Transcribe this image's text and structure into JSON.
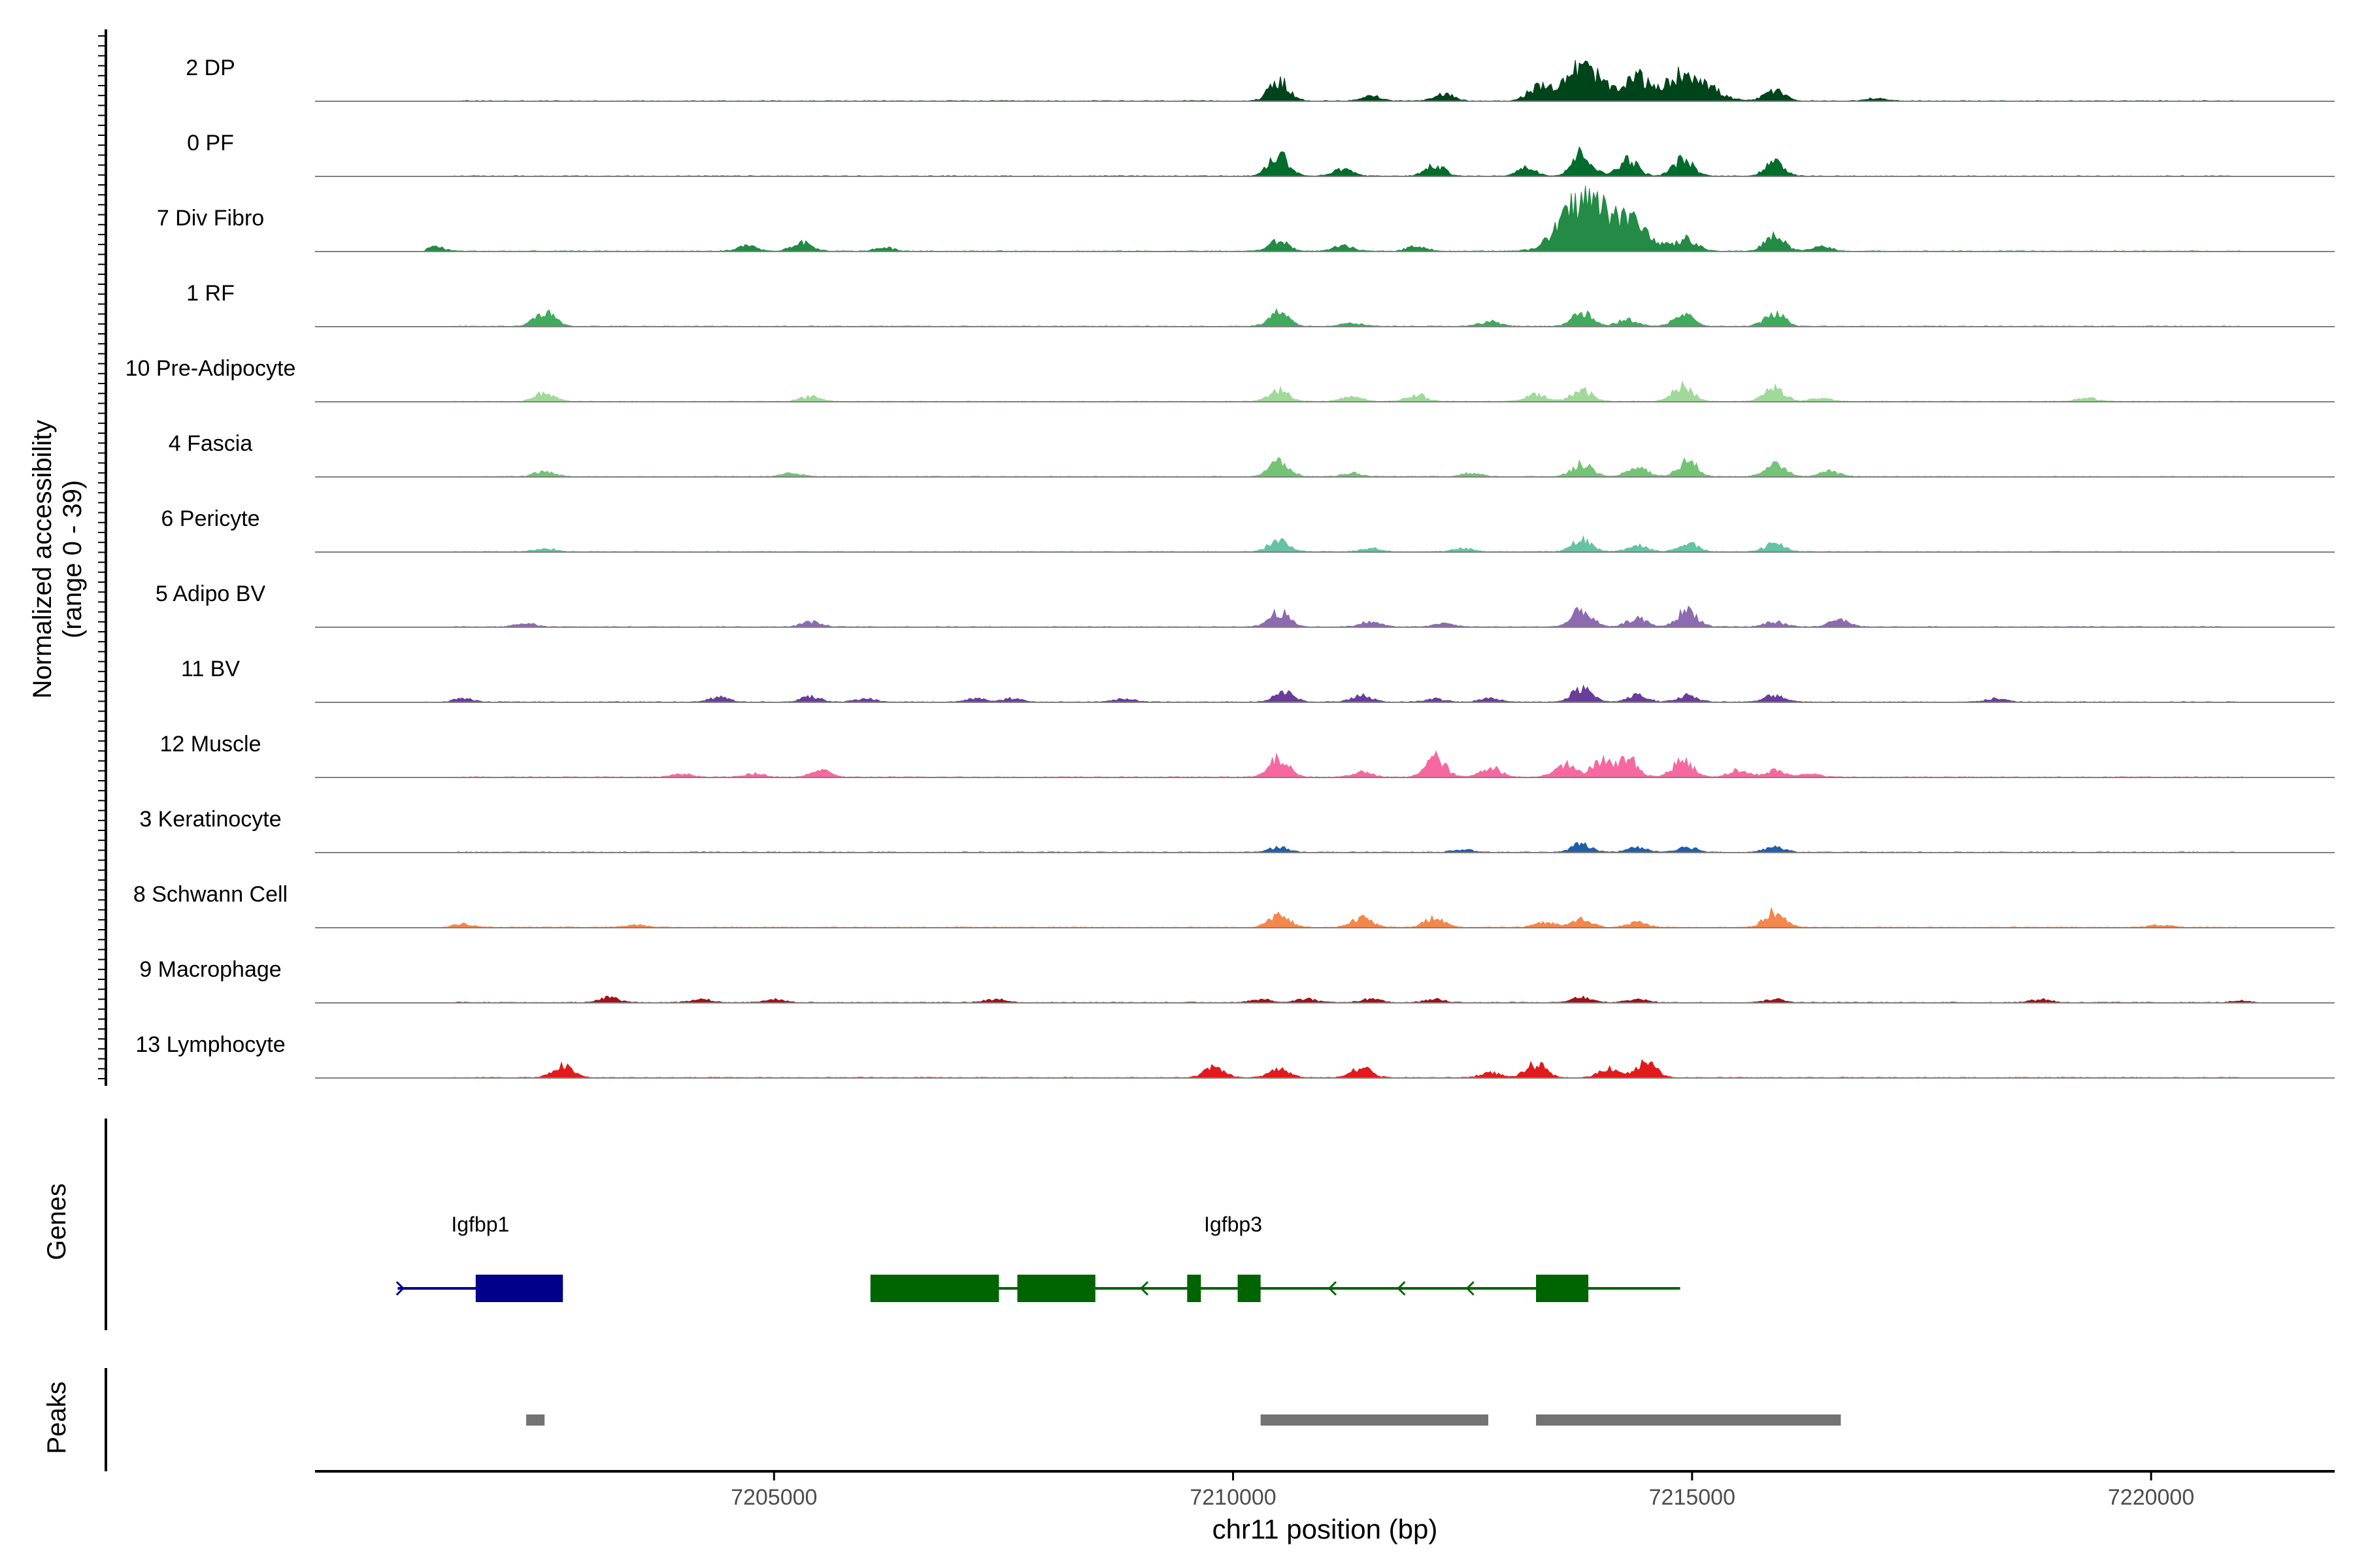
{
  "chart_data": {
    "type": "area",
    "genome_region": {
      "chromosome": "chr11",
      "start": 7200000,
      "end": 7222000
    },
    "xlabel": "chr11 position (bp)",
    "x_ticks": [
      {
        "value": 7205000,
        "label": "7205000"
      },
      {
        "value": 7210000,
        "label": "7210000"
      },
      {
        "value": 7215000,
        "label": "7215000"
      },
      {
        "value": 7220000,
        "label": "7220000"
      }
    ],
    "ylabel_line1": "Normalized accessibility",
    "ylabel_line2": "(range 0 - 39)",
    "ylim": [
      0,
      39
    ],
    "panel_labels": {
      "genes": "Genes",
      "peaks": "Peaks"
    },
    "tracks": [
      {
        "name": "2 DP",
        "color": "#00441b",
        "peaks": [
          [
            7210500,
            12
          ],
          [
            7211500,
            3
          ],
          [
            7212300,
            4
          ],
          [
            7213300,
            6
          ],
          [
            7213800,
            20
          ],
          [
            7214400,
            14
          ],
          [
            7214950,
            17
          ],
          [
            7215900,
            6
          ],
          [
            7217000,
            1.5
          ]
        ]
      },
      {
        "name": "0 PF",
        "color": "#006d2c",
        "peaks": [
          [
            7210500,
            13
          ],
          [
            7211200,
            4
          ],
          [
            7212200,
            6
          ],
          [
            7213200,
            5
          ],
          [
            7213800,
            14
          ],
          [
            7214300,
            10
          ],
          [
            7214900,
            10
          ],
          [
            7215900,
            8
          ]
        ]
      },
      {
        "name": "7 Div Fibro",
        "color": "#238b45",
        "peaks": [
          [
            7201300,
            3
          ],
          [
            7204700,
            3
          ],
          [
            7205300,
            5
          ],
          [
            7206200,
            2
          ],
          [
            7210500,
            6
          ],
          [
            7211200,
            3
          ],
          [
            7212000,
            3
          ],
          [
            7213800,
            30
          ],
          [
            7214300,
            18
          ],
          [
            7214950,
            7
          ],
          [
            7215900,
            9
          ],
          [
            7216400,
            3
          ]
        ]
      },
      {
        "name": "1 RF",
        "color": "#41ab5d",
        "peaks": [
          [
            7202500,
            9
          ],
          [
            7210500,
            8
          ],
          [
            7211300,
            2
          ],
          [
            7212800,
            3
          ],
          [
            7213800,
            8
          ],
          [
            7214300,
            4
          ],
          [
            7214900,
            7
          ],
          [
            7215900,
            8
          ]
        ]
      },
      {
        "name": "10 Pre-Adipocyte",
        "color": "#a1d99b",
        "peaks": [
          [
            7202500,
            5
          ],
          [
            7205400,
            3
          ],
          [
            7210500,
            7
          ],
          [
            7211300,
            3
          ],
          [
            7212000,
            4
          ],
          [
            7213300,
            4
          ],
          [
            7213800,
            7
          ],
          [
            7214900,
            9
          ],
          [
            7215900,
            8
          ],
          [
            7216400,
            2
          ],
          [
            7219300,
            2
          ]
        ]
      },
      {
        "name": "4 Fascia",
        "color": "#74c476",
        "peaks": [
          [
            7202500,
            3
          ],
          [
            7205200,
            2
          ],
          [
            7210500,
            9
          ],
          [
            7211300,
            2
          ],
          [
            7212600,
            2
          ],
          [
            7213800,
            8
          ],
          [
            7214400,
            6
          ],
          [
            7214950,
            9
          ],
          [
            7215900,
            9
          ],
          [
            7216500,
            3
          ]
        ]
      },
      {
        "name": "6 Pericyte",
        "color": "#66c2a4",
        "peaks": [
          [
            7202500,
            2
          ],
          [
            7210500,
            7
          ],
          [
            7211500,
            2
          ],
          [
            7212500,
            2
          ],
          [
            7213800,
            7
          ],
          [
            7214400,
            4
          ],
          [
            7214950,
            5
          ],
          [
            7215900,
            5
          ]
        ]
      },
      {
        "name": "5 Adipo BV",
        "color": "#8c6bb1",
        "peaks": [
          [
            7202300,
            2
          ],
          [
            7205400,
            3
          ],
          [
            7210500,
            9
          ],
          [
            7211500,
            3
          ],
          [
            7212300,
            2
          ],
          [
            7213800,
            10
          ],
          [
            7214400,
            5
          ],
          [
            7214950,
            10
          ],
          [
            7215900,
            3
          ],
          [
            7216600,
            4
          ]
        ]
      },
      {
        "name": "11 BV",
        "color": "#6a3d9a",
        "peaks": [
          [
            7201000,
            2
          ],
          [
            7201600,
            2
          ],
          [
            7204400,
            3
          ],
          [
            7205400,
            3
          ],
          [
            7206000,
            2
          ],
          [
            7207200,
            2
          ],
          [
            7207600,
            2
          ],
          [
            7208800,
            2
          ],
          [
            7210550,
            6
          ],
          [
            7211400,
            4
          ],
          [
            7212200,
            2
          ],
          [
            7212800,
            2
          ],
          [
            7213800,
            8
          ],
          [
            7214400,
            4
          ],
          [
            7214950,
            4
          ],
          [
            7215900,
            4
          ],
          [
            7218300,
            2
          ]
        ]
      },
      {
        "name": "12 Muscle",
        "color": "#f768a1",
        "peaks": [
          [
            7204000,
            2
          ],
          [
            7204800,
            2
          ],
          [
            7205500,
            4
          ],
          [
            7210500,
            11
          ],
          [
            7211400,
            3
          ],
          [
            7212200,
            12
          ],
          [
            7212800,
            6
          ],
          [
            7213600,
            8
          ],
          [
            7214000,
            10
          ],
          [
            7214300,
            11
          ],
          [
            7214900,
            10
          ],
          [
            7215500,
            4
          ],
          [
            7215900,
            4
          ],
          [
            7216300,
            2
          ]
        ]
      },
      {
        "name": "3 Keratinocyte",
        "color": "#225ea8",
        "peaks": [
          [
            7210500,
            3
          ],
          [
            7212500,
            1.5
          ],
          [
            7213800,
            5
          ],
          [
            7214400,
            3
          ],
          [
            7214950,
            3
          ],
          [
            7215900,
            3
          ]
        ]
      },
      {
        "name": "8 Schwann Cell",
        "color": "#f4874b",
        "peaks": [
          [
            7201600,
            2
          ],
          [
            7203500,
            1.5
          ],
          [
            7210500,
            8
          ],
          [
            7211400,
            6
          ],
          [
            7212200,
            6
          ],
          [
            7213400,
            3
          ],
          [
            7213800,
            5
          ],
          [
            7214400,
            3
          ],
          [
            7215900,
            9
          ],
          [
            7220100,
            1.5
          ]
        ]
      },
      {
        "name": "9 Macrophage",
        "color": "#a50f15",
        "peaks": [
          [
            7203200,
            3
          ],
          [
            7204200,
            2
          ],
          [
            7205000,
            2
          ],
          [
            7207400,
            2
          ],
          [
            7210300,
            2
          ],
          [
            7210800,
            2
          ],
          [
            7211500,
            2
          ],
          [
            7212200,
            2
          ],
          [
            7213800,
            3
          ],
          [
            7214400,
            2
          ],
          [
            7215900,
            2
          ],
          [
            7218800,
            2
          ],
          [
            7221000,
            1
          ]
        ]
      },
      {
        "name": "13 Lymphocyte",
        "color": "#e31a1c",
        "peaks": [
          [
            7202700,
            7
          ],
          [
            7209800,
            7
          ],
          [
            7210500,
            5
          ],
          [
            7211400,
            6
          ],
          [
            7212800,
            3
          ],
          [
            7213300,
            8
          ],
          [
            7214100,
            6
          ],
          [
            7214500,
            9
          ]
        ]
      }
    ],
    "genes": [
      {
        "name": "Igfbp1",
        "strand": "+",
        "color": "#00008b",
        "start": 7200900,
        "end": 7202700,
        "label_pos": 7201800,
        "exons": [
          [
            7201750,
            7202700
          ]
        ]
      },
      {
        "name": "Igfbp3",
        "strand": "-",
        "color": "#006400",
        "start": 7206050,
        "end": 7214870,
        "label_pos": 7210000,
        "exons": [
          [
            7206050,
            7207450
          ],
          [
            7207650,
            7208500
          ],
          [
            7209500,
            7209650
          ],
          [
            7210050,
            7210300
          ],
          [
            7213300,
            7213870
          ]
        ]
      }
    ],
    "peaks": [
      [
        7202300,
        7202500
      ],
      [
        7210300,
        7212780
      ],
      [
        7213300,
        7216620
      ]
    ]
  }
}
